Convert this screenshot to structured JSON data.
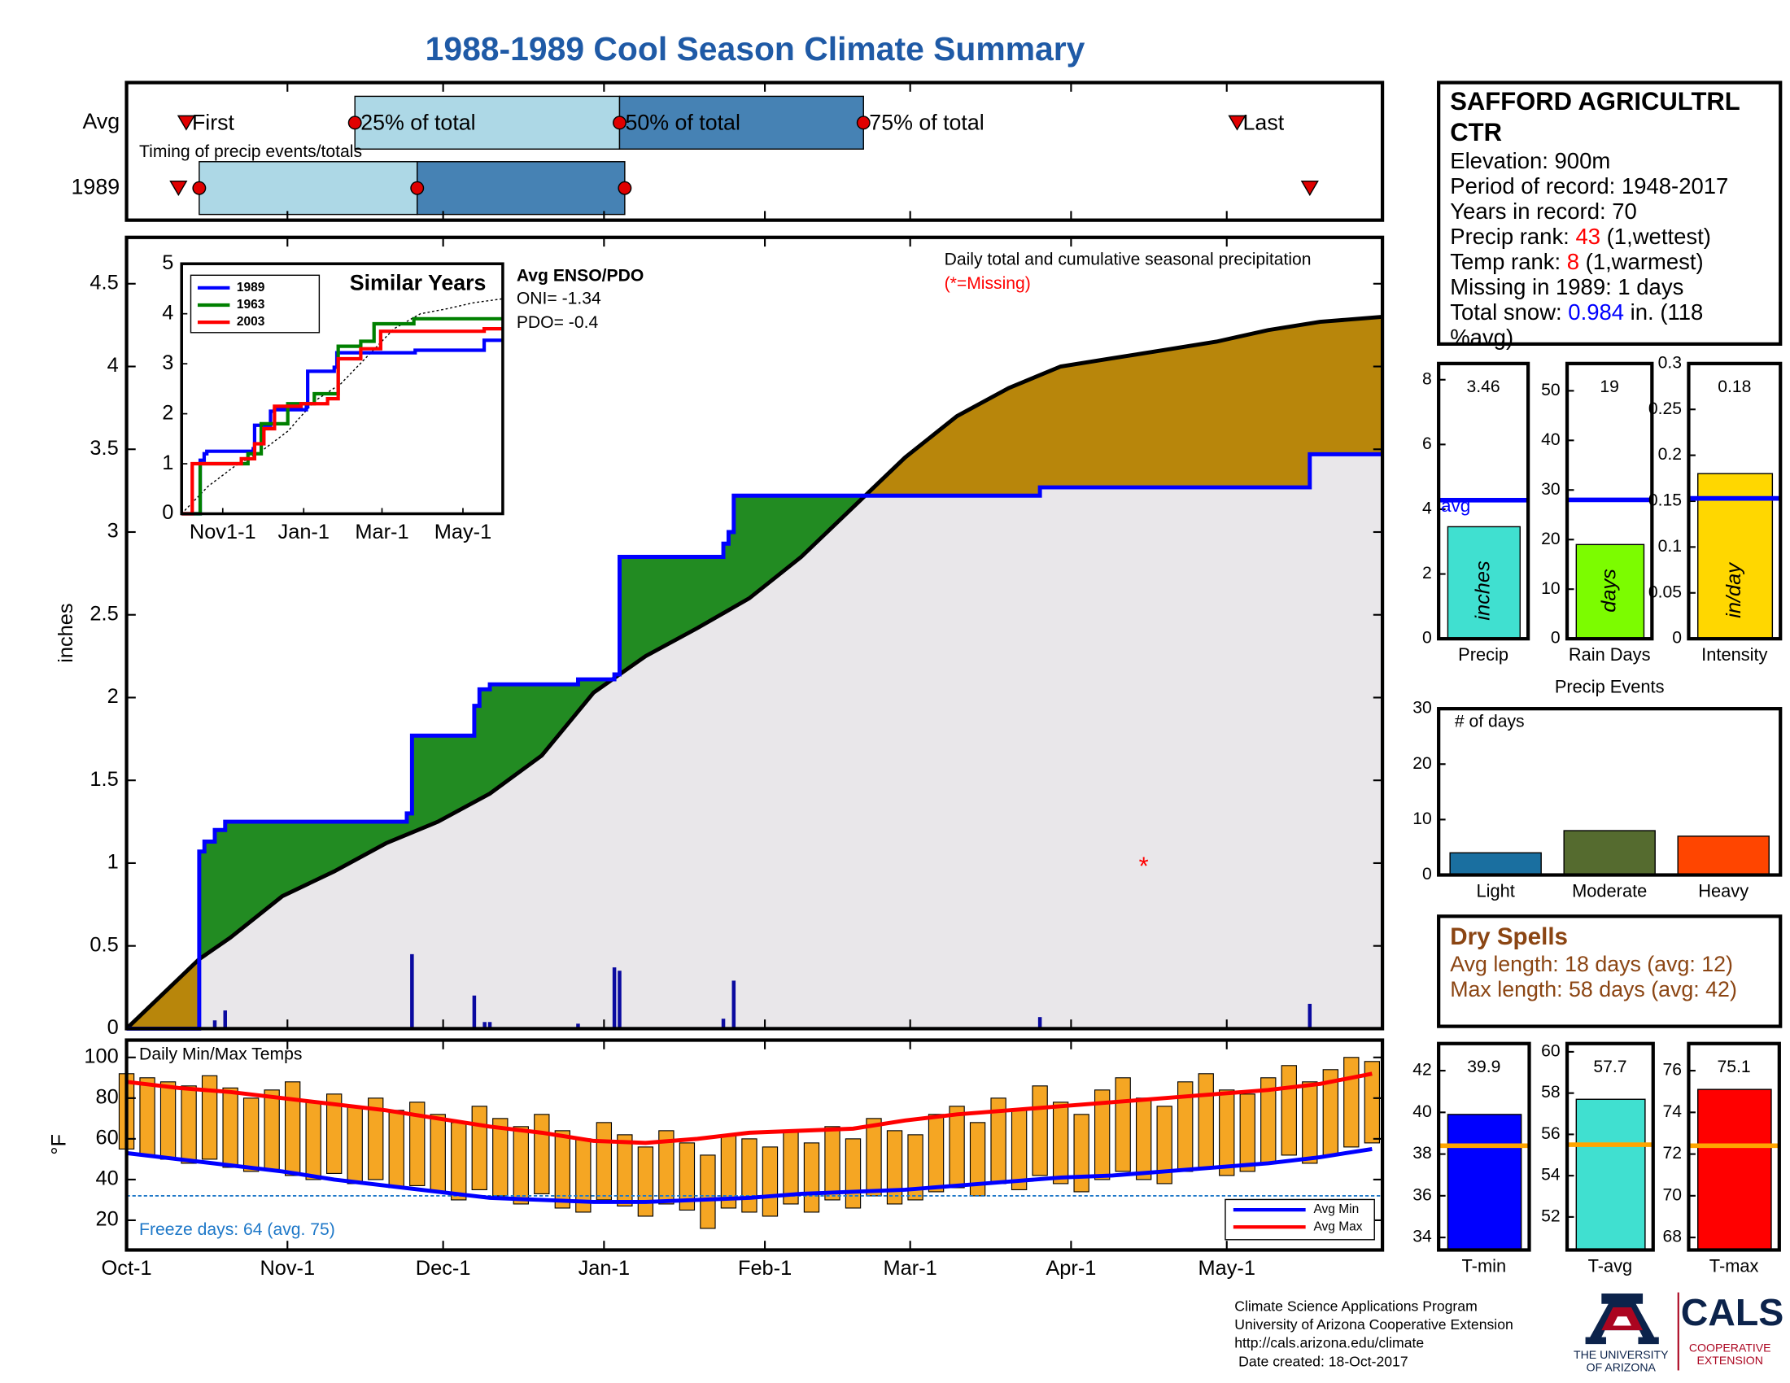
{
  "title": "1988-1989 Cool Season Climate Summary",
  "chart_data": [
    {
      "type": "timing",
      "annotation": "Timing of precip events/totals",
      "xlim": [
        0,
        242
      ],
      "box_colors": [
        "#add8e6",
        "#4682b4"
      ],
      "marker_color": "#e00000",
      "marker_labels": {
        "first": "First",
        "p25": "25% of total",
        "p50": "50% of total",
        "p75": "75% of total",
        "last": "Last"
      },
      "rows": [
        {
          "name": "Avg",
          "first": 11.5,
          "p25": 44,
          "p50": 95,
          "p75": 142,
          "last": 214
        },
        {
          "name": "1989",
          "first": 10,
          "p25": 14,
          "p50": 56,
          "p75": 96,
          "last": 228
        }
      ]
    },
    {
      "type": "cumulative",
      "ylabel": "inches",
      "annotation": "Daily total and cumulative seasonal precipitation",
      "missing_note": "(*=Missing)",
      "missing_color": "#ff0000",
      "missing_marker": {
        "label": "*",
        "x": 196,
        "value": 1.0
      },
      "xlim": [
        0,
        242
      ],
      "ylim": [
        0,
        4.78
      ],
      "yticks": [
        0,
        0.5,
        1,
        1.5,
        2,
        2.5,
        3,
        3.5,
        4,
        4.5
      ],
      "xticks": [
        {
          "value": 0,
          "label": "Oct-1"
        },
        {
          "value": 31,
          "label": "Nov-1"
        },
        {
          "value": 61,
          "label": "Dec-1"
        },
        {
          "value": 92,
          "label": "Jan-1"
        },
        {
          "value": 123,
          "label": "Feb-1"
        },
        {
          "value": 151,
          "label": "Mar-1"
        },
        {
          "value": 182,
          "label": "Apr-1"
        },
        {
          "value": 212,
          "label": "May-1"
        }
      ],
      "fill_colors": {
        "surplus": "#228b22",
        "deficit": "#b8860b",
        "base": "#e9e7ea"
      },
      "steps": true,
      "observed": {
        "color": "#0000ff",
        "x": [
          0,
          14,
          15,
          17,
          19,
          54,
          55,
          67,
          68,
          70,
          87,
          94,
          95,
          115,
          116,
          117,
          176,
          228
        ],
        "values": [
          0,
          1.07,
          1.13,
          1.2,
          1.25,
          1.3,
          1.77,
          1.95,
          2.05,
          2.08,
          2.11,
          2.14,
          2.85,
          2.93,
          3.0,
          3.22,
          3.27,
          3.47
        ]
      },
      "average": {
        "color": "#000000",
        "x": [
          0,
          10,
          14,
          20,
          30,
          40,
          50,
          60,
          70,
          80,
          90,
          100,
          110,
          120,
          130,
          140,
          150,
          160,
          170,
          180,
          190,
          200,
          210,
          220,
          230,
          242
        ],
        "values": [
          0,
          0.3,
          0.42,
          0.55,
          0.8,
          0.95,
          1.12,
          1.25,
          1.42,
          1.65,
          2.03,
          2.25,
          2.42,
          2.6,
          2.85,
          3.15,
          3.45,
          3.7,
          3.87,
          4.0,
          4.05,
          4.1,
          4.15,
          4.22,
          4.27,
          4.3
        ]
      },
      "daily": {
        "color": "#0a0aa0",
        "x": [
          14,
          17,
          19,
          55,
          67,
          69,
          70,
          87,
          94,
          95,
          115,
          117,
          176,
          228
        ],
        "values": [
          1.07,
          0.05,
          0.11,
          0.45,
          0.2,
          0.04,
          0.04,
          0.03,
          0.37,
          0.35,
          0.06,
          0.29,
          0.07,
          0.15
        ]
      }
    },
    {
      "type": "line",
      "title": "Similar Years",
      "steps": true,
      "xlim": [
        0,
        242
      ],
      "ylim": [
        0,
        5
      ],
      "yticks": [
        0,
        1,
        2,
        3,
        4,
        5
      ],
      "xticks": [
        {
          "value": 31,
          "label": "Nov1-1"
        },
        {
          "value": 92,
          "label": "Jan-1"
        },
        {
          "value": 151,
          "label": "Mar-1"
        },
        {
          "value": 212,
          "label": "May-1"
        }
      ],
      "series": [
        {
          "name": "1989",
          "color": "#0000ff",
          "x": [
            0,
            14,
            17,
            19,
            54,
            55,
            67,
            70,
            94,
            95,
            115,
            117,
            176,
            228
          ],
          "values": [
            0,
            1.07,
            1.2,
            1.25,
            1.3,
            1.77,
            2.05,
            2.08,
            2.14,
            2.85,
            2.93,
            3.22,
            3.27,
            3.47
          ]
        },
        {
          "name": "1963",
          "color": "#008000",
          "x": [
            0,
            14,
            30,
            50,
            60,
            80,
            100,
            118,
            135,
            145,
            175
          ],
          "values": [
            0,
            1.0,
            1.0,
            1.2,
            1.8,
            2.2,
            2.4,
            3.35,
            3.45,
            3.8,
            3.9
          ]
        },
        {
          "name": "2003",
          "color": "#ff0000",
          "x": [
            0,
            8,
            20,
            45,
            55,
            62,
            70,
            90,
            110,
            118,
            135,
            150,
            180,
            228
          ],
          "values": [
            0,
            1.0,
            1.0,
            1.1,
            1.4,
            1.7,
            2.15,
            2.2,
            2.3,
            3.1,
            3.3,
            3.65,
            3.65,
            3.7
          ]
        }
      ],
      "reference": {
        "color": "#000000",
        "x": [
          0,
          20,
          40,
          60,
          80,
          100,
          120,
          140,
          160,
          180,
          200,
          220,
          242
        ],
        "values": [
          0,
          0.55,
          0.95,
          1.25,
          1.65,
          2.25,
          2.6,
          3.15,
          3.7,
          4.0,
          4.1,
          4.22,
          4.3
        ]
      },
      "enso": {
        "title": "Avg ENSO/PDO",
        "lines": [
          "ONI= -1.34",
          "PDO= -0.4"
        ]
      }
    },
    {
      "type": "bar-avg",
      "xlabel": "Precip",
      "bar_label": "inches",
      "values": [
        3.46
      ],
      "avg": 4.28,
      "avg_label": "avg",
      "color": "#40e0d0",
      "avg_color": "#0000ff",
      "ylim": [
        0,
        8.5
      ],
      "yticks": [
        0,
        2,
        4,
        6,
        8
      ]
    },
    {
      "type": "bar-avg",
      "xlabel": "Rain Days",
      "bar_label": "days",
      "values": [
        19
      ],
      "avg": 28,
      "color": "#7cfc00",
      "avg_color": "#0000ff",
      "ylim": [
        0,
        55.5
      ],
      "yticks": [
        0,
        10,
        20,
        30,
        40,
        50
      ]
    },
    {
      "type": "bar-avg",
      "xlabel": "Intensity",
      "bar_label": "in/day",
      "values": [
        0.18
      ],
      "avg": 0.153,
      "color": "#ffd700",
      "avg_color": "#0000ff",
      "ylim": [
        0,
        0.3
      ],
      "yticks": [
        0,
        0.05,
        0.1,
        0.15,
        0.2,
        0.25,
        0.3
      ]
    },
    {
      "type": "bar",
      "title": "Precip Events",
      "annotation": "# of days",
      "categories": [
        "Light",
        "Moderate",
        "Heavy"
      ],
      "values": [
        4,
        8,
        7
      ],
      "colors": [
        "#1a6fa0",
        "#556b2f",
        "#ff4500"
      ],
      "ylim": [
        0,
        30
      ],
      "yticks": [
        0,
        10,
        20,
        30
      ]
    },
    {
      "type": "minmax",
      "title": "Daily Min/Max Temps",
      "ylabel": "°F",
      "xlim": [
        0,
        242
      ],
      "ylim": [
        5.4,
        108.5
      ],
      "yticks": [
        20,
        40,
        60,
        80,
        100
      ],
      "color": "#f5a623",
      "freeze_line": 32,
      "freeze_color": "#1e78c8",
      "freeze_note": "Freeze days: 64 (avg. 75)",
      "x": [
        0,
        4,
        8,
        12,
        16,
        20,
        24,
        28,
        32,
        36,
        40,
        44,
        48,
        52,
        56,
        60,
        64,
        68,
        72,
        76,
        80,
        84,
        88,
        92,
        96,
        100,
        104,
        108,
        112,
        116,
        120,
        124,
        128,
        132,
        136,
        140,
        144,
        148,
        152,
        156,
        160,
        164,
        168,
        172,
        176,
        180,
        184,
        188,
        192,
        196,
        200,
        204,
        208,
        212,
        216,
        220,
        224,
        228,
        232,
        236,
        240
      ],
      "max": [
        92,
        90,
        88,
        86,
        91,
        85,
        80,
        84,
        88,
        78,
        82,
        76,
        80,
        74,
        78,
        72,
        68,
        76,
        70,
        66,
        72,
        64,
        60,
        68,
        62,
        56,
        64,
        58,
        52,
        62,
        60,
        56,
        64,
        58,
        66,
        60,
        70,
        64,
        62,
        72,
        76,
        68,
        80,
        74,
        86,
        78,
        72,
        84,
        90,
        80,
        76,
        88,
        92,
        84,
        82,
        90,
        96,
        88,
        94,
        100,
        98
      ],
      "min": [
        55,
        52,
        50,
        48,
        50,
        46,
        44,
        45,
        42,
        40,
        43,
        38,
        40,
        36,
        37,
        34,
        30,
        35,
        32,
        28,
        33,
        26,
        24,
        30,
        27,
        22,
        28,
        25,
        16,
        26,
        24,
        22,
        28,
        24,
        30,
        26,
        32,
        28,
        30,
        34,
        36,
        32,
        38,
        35,
        42,
        38,
        34,
        40,
        44,
        40,
        38,
        44,
        46,
        42,
        44,
        48,
        52,
        48,
        52,
        56,
        58
      ],
      "series": [
        {
          "name": "Avg Min",
          "color": "#0000ff",
          "x": [
            0,
            10,
            20,
            30,
            40,
            50,
            60,
            70,
            80,
            90,
            100,
            110,
            120,
            130,
            140,
            150,
            160,
            170,
            180,
            190,
            200,
            210,
            220,
            230,
            240
          ],
          "values": [
            53,
            50,
            47,
            44,
            40,
            37,
            34,
            31,
            30,
            29,
            29,
            30,
            31,
            33,
            34,
            35,
            37,
            39,
            41,
            42,
            44,
            46,
            48,
            51,
            55
          ]
        },
        {
          "name": "Avg Max",
          "color": "#ff0000",
          "x": [
            0,
            10,
            20,
            30,
            40,
            50,
            60,
            70,
            80,
            90,
            100,
            110,
            120,
            130,
            140,
            150,
            160,
            170,
            180,
            190,
            200,
            210,
            220,
            230,
            240
          ],
          "values": [
            88,
            85,
            83,
            80,
            77,
            74,
            70,
            66,
            63,
            59,
            58,
            60,
            63,
            64,
            65,
            69,
            72,
            74,
            76,
            78,
            80,
            82,
            84,
            87,
            92
          ]
        }
      ]
    },
    {
      "type": "bar-avg",
      "xlabel": "T-min",
      "values": [
        39.9
      ],
      "avg": 38.4,
      "color": "#0000ff",
      "avg_color": "#ffa500",
      "ylim": [
        33.4,
        43.3
      ],
      "yticks": [
        34,
        36,
        38,
        40,
        42
      ]
    },
    {
      "type": "bar-avg",
      "xlabel": "T-avg",
      "values": [
        57.7
      ],
      "avg": 55.5,
      "color": "#40e0d0",
      "avg_color": "#ffa500",
      "ylim": [
        50.4,
        60.4
      ],
      "yticks": [
        52,
        54,
        56,
        58,
        60
      ]
    },
    {
      "type": "bar-avg",
      "xlabel": "T-max",
      "values": [
        75.1
      ],
      "avg": 72.4,
      "color": "#ff0000",
      "avg_color": "#ffa500",
      "ylim": [
        67.4,
        77.3
      ],
      "yticks": [
        68,
        70,
        72,
        74,
        76
      ]
    }
  ],
  "station": {
    "title": [
      "SAFFORD AGRICULTRL",
      "CTR"
    ],
    "lines": [
      [
        {
          "text": "Elevation: 900m"
        }
      ],
      [
        {
          "text": "Period of record: 1948-2017"
        }
      ],
      [
        {
          "text": "Years in record: 70"
        }
      ],
      [
        {
          "text": "Precip rank: "
        },
        {
          "text": "43",
          "color": "#ff0000"
        },
        {
          "text": " (1,wettest)"
        }
      ],
      [
        {
          "text": "Temp rank: "
        },
        {
          "text": "8",
          "color": "#ff0000"
        },
        {
          "text": " (1,warmest)"
        }
      ],
      [
        {
          "text": "Missing in 1989: 1 days"
        }
      ],
      [
        {
          "text": "Total snow: "
        },
        {
          "text": "0.984",
          "color": "#0000ff"
        },
        {
          "text": " in. (118"
        }
      ],
      [
        {
          "text": "%avg)"
        }
      ]
    ]
  },
  "dry_spells": {
    "title": "Dry Spells",
    "color": "#8b4513",
    "lines": [
      "Avg length: 18 days (avg: 12)",
      "Max length: 58 days (avg: 42)"
    ]
  },
  "footer": {
    "lines": [
      "Climate Science Applications Program",
      "University of Arizona Cooperative Extension",
      "http://cals.arizona.edu/climate",
      " Date created: 18-Oct-2017"
    ],
    "university": [
      "THE UNIVERSITY",
      "OF ARIZONA"
    ],
    "cals": "CALS",
    "extension": [
      "COOPERATIVE",
      "EXTENSION"
    ]
  }
}
